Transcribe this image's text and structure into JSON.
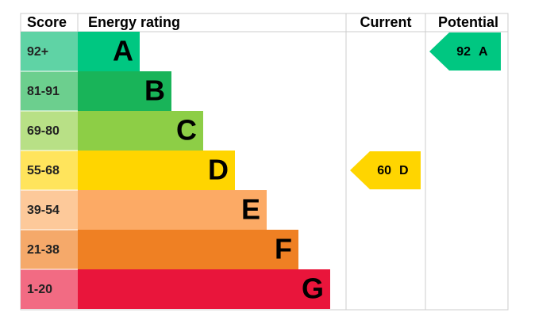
{
  "header": {
    "score": "Score",
    "rating": "Energy rating",
    "current": "Current",
    "potential": "Potential"
  },
  "bands": [
    {
      "score": "92+",
      "letter": "A",
      "color": "#00c781",
      "tint": "#5fd3a5"
    },
    {
      "score": "81-91",
      "letter": "B",
      "color": "#19b459",
      "tint": "#6ccf8e"
    },
    {
      "score": "69-80",
      "letter": "C",
      "color": "#8dce46",
      "tint": "#b8e086"
    },
    {
      "score": "55-68",
      "letter": "D",
      "color": "#ffd500",
      "tint": "#ffe45c"
    },
    {
      "score": "39-54",
      "letter": "E",
      "color": "#fcaa65",
      "tint": "#fdc99a"
    },
    {
      "score": "21-38",
      "letter": "F",
      "color": "#ef8023",
      "tint": "#f5a96a"
    },
    {
      "score": "1-20",
      "letter": "G",
      "color": "#e9153b",
      "tint": "#f26b83"
    }
  ],
  "current": {
    "value": 60,
    "letter": "D"
  },
  "potential": {
    "value": 92,
    "letter": "A"
  }
}
